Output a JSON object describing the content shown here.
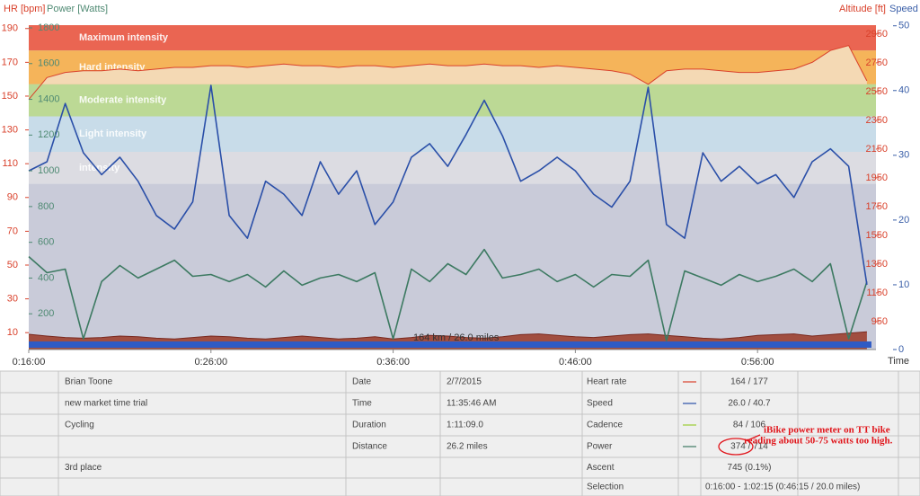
{
  "chart_data": {
    "type": "line",
    "x_axis": {
      "label": "Time",
      "lim": [
        16,
        62.5
      ],
      "ticks": [
        {
          "value": 16,
          "label": "0:16:00"
        },
        {
          "value": 26,
          "label": "0:26:00"
        },
        {
          "value": 36,
          "label": "0:36:00"
        },
        {
          "value": 46,
          "label": "0:46:00"
        },
        {
          "value": 56,
          "label": "0:56:00"
        }
      ]
    },
    "axes": {
      "hr": {
        "label": "HR [bpm]",
        "lim": [
          0,
          192
        ],
        "ticks": [
          10,
          30,
          50,
          70,
          90,
          110,
          130,
          150,
          170,
          190
        ],
        "color": "#d9412b"
      },
      "power": {
        "label": "Power [Watts]",
        "lim": [
          0,
          1815
        ],
        "ticks": [
          200,
          400,
          600,
          800,
          1000,
          1200,
          1400,
          1600,
          1800
        ],
        "color": "#4f8a73"
      },
      "altitude": {
        "label": "Altitude [ft]",
        "lim": [
          756,
          3012
        ],
        "ticks": [
          950,
          1150,
          1350,
          1550,
          1750,
          1950,
          2150,
          2350,
          2550,
          2750,
          2950
        ],
        "color": "#d9412b"
      },
      "speed": {
        "label": "Speed [mph]",
        "lim": [
          0,
          50.1
        ],
        "ticks": [
          0,
          10,
          20,
          30,
          40,
          50
        ],
        "color": "#3a5fa8"
      }
    },
    "zones": [
      {
        "name": "Maximum intensity",
        "range": [
          177,
          192
        ],
        "color": "#ea6552"
      },
      {
        "name": "Hard intensity",
        "range": [
          157,
          177
        ],
        "color": "#f5b45a"
      },
      {
        "name": "Moderate intensity",
        "range": [
          138,
          157
        ],
        "color": "#bcd995"
      },
      {
        "name": "Light intensity",
        "range": [
          117,
          138
        ],
        "color": "#c8dce9"
      },
      {
        "name": "intensity",
        "range": [
          98,
          117
        ],
        "color": "#dcdce2"
      }
    ],
    "x": [
      16,
      17,
      18,
      19,
      20,
      21,
      22,
      23,
      24,
      25,
      26,
      27,
      28,
      29,
      30,
      31,
      32,
      33,
      34,
      35,
      36,
      37,
      38,
      39,
      40,
      41,
      42,
      43,
      44,
      45,
      46,
      47,
      48,
      49,
      50,
      51,
      52,
      53,
      54,
      55,
      56,
      57,
      58,
      59,
      60,
      61,
      62
    ],
    "series": [
      {
        "name": "Heart rate",
        "axis": "hr",
        "color": "#d9412b",
        "fill": "#f4d9b4",
        "values": [
          148,
          161,
          164,
          165,
          165,
          166,
          165,
          166,
          167,
          167,
          168,
          168,
          167,
          168,
          169,
          168,
          168,
          167,
          168,
          168,
          167,
          168,
          169,
          168,
          168,
          169,
          168,
          168,
          167,
          168,
          167,
          166,
          165,
          163,
          157,
          165,
          166,
          166,
          165,
          164,
          164,
          165,
          166,
          170,
          177,
          180,
          159
        ]
      },
      {
        "name": "Altitude",
        "axis": "altitude",
        "color": "#7a2a20",
        "fill": "#a14e40",
        "values": [
          862,
          850,
          840,
          835,
          840,
          850,
          845,
          835,
          830,
          840,
          850,
          845,
          835,
          830,
          840,
          850,
          840,
          830,
          835,
          845,
          830,
          840,
          855,
          850,
          840,
          835,
          845,
          860,
          865,
          855,
          845,
          840,
          850,
          860,
          865,
          855,
          845,
          835,
          830,
          840,
          855,
          860,
          865,
          850,
          860,
          870,
          880
        ]
      },
      {
        "name": "Power",
        "axis": "power",
        "color": "#3d7a62",
        "values": [
          520,
          430,
          450,
          60,
          380,
          470,
          400,
          450,
          500,
          410,
          420,
          380,
          420,
          350,
          440,
          360,
          400,
          420,
          380,
          430,
          60,
          450,
          380,
          480,
          420,
          560,
          400,
          420,
          450,
          380,
          420,
          350,
          420,
          410,
          500,
          50,
          440,
          400,
          360,
          420,
          380,
          410,
          450,
          380,
          480,
          60,
          380
        ]
      },
      {
        "name": "Speed",
        "axis": "speed",
        "color": "#2a4fa8",
        "values": [
          27.6,
          29,
          38,
          30.4,
          27,
          29.7,
          26,
          20.7,
          18.6,
          22.8,
          40.8,
          20.7,
          17.2,
          26,
          24,
          20.7,
          29,
          24,
          27.6,
          19.3,
          22.8,
          29.7,
          31.8,
          28.3,
          33.2,
          38.5,
          33,
          26,
          27.6,
          29.7,
          27.6,
          24,
          22,
          26,
          40.5,
          19.3,
          17.2,
          30.4,
          26,
          28.3,
          25.6,
          27,
          23.5,
          29,
          31,
          28.3,
          10
        ]
      }
    ],
    "bottom_label": "164 km / 26.0 miles"
  },
  "info": {
    "athlete": "Brian Toone",
    "workout": "new market time trial",
    "sport": "Cycling",
    "notes": "3rd place",
    "fields": [
      {
        "label": "Date",
        "value": "2/7/2015"
      },
      {
        "label": "Time",
        "value": "11:35:46 AM"
      },
      {
        "label": "Duration",
        "value": "1:11:09.0"
      },
      {
        "label": "Distance",
        "value": "26.2 miles"
      }
    ],
    "metrics": [
      {
        "label": "Heart rate",
        "value": "164 / 177",
        "color": "#d9412b"
      },
      {
        "label": "Speed",
        "value": "26.0 / 40.7",
        "color": "#2a4fa8"
      },
      {
        "label": "Cadence",
        "value": "84 / 106",
        "color": "#9acd32"
      },
      {
        "label": "Power",
        "value": "374 / 714",
        "color": "#3d7a62"
      },
      {
        "label": "Ascent",
        "value": "745 (0.1%)"
      }
    ],
    "selection": {
      "label": "Selection",
      "value": "0:16:00 - 1:02:15 (0:46:15 / 20.0 miles)"
    }
  },
  "annotation": {
    "lines": [
      "iBike power meter on TT bike",
      "reading about 50-75 watts too high."
    ]
  }
}
